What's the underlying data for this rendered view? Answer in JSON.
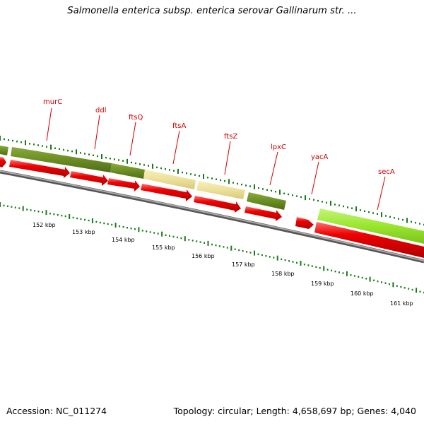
{
  "title": "Salmonella enterica subsp. enterica serovar Gallinarum str. ...",
  "footer": {
    "accession": "Accession: NC_011274",
    "summary": "Topology: circular; Length: 4,658,697 bp; Genes: 4,040"
  },
  "colors": {
    "gene_label": "#d00000",
    "tick": "#1a7a1a",
    "backbone": "#7f7f7f",
    "cds_arrow": "#e80000",
    "olive": "#6b8e23",
    "pale_yellow": "#ece19a",
    "lime": "#99e62e"
  },
  "gene_labels": [
    "murC",
    "ddl",
    "ftsQ",
    "ftsA",
    "ftsZ",
    "lpxC",
    "yacA",
    "secA"
  ],
  "kbp_labels": [
    "152 kbp",
    "153 kbp",
    "154 kbp",
    "155 kbp",
    "156 kbp",
    "157 kbp",
    "158 kbp",
    "159 kbp",
    "160 kbp",
    "161 kbp"
  ]
}
